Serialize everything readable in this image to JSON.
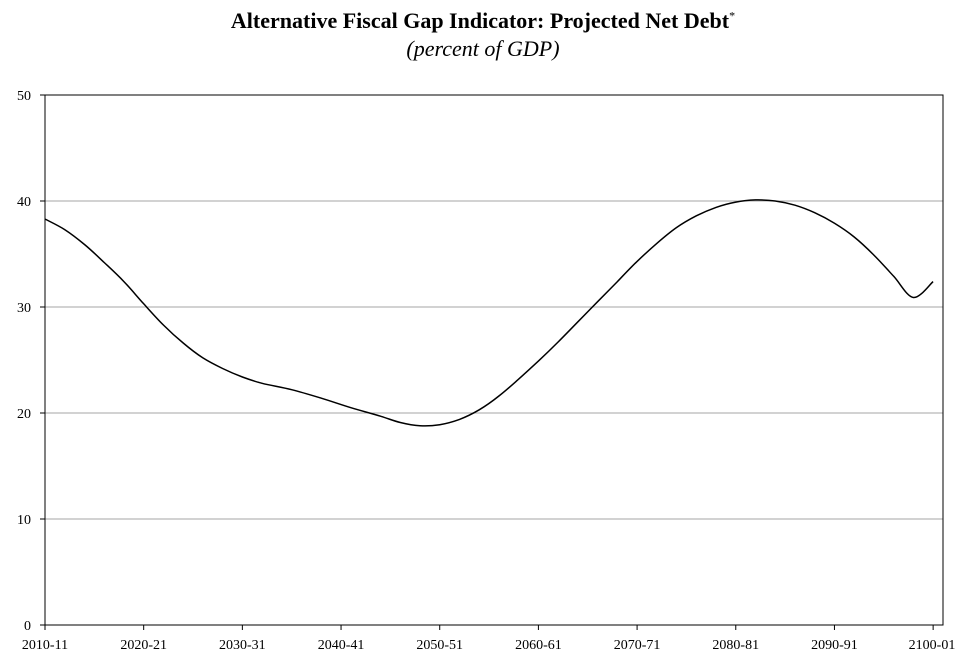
{
  "chart_data": {
    "type": "line",
    "title": "Alternative Fiscal Gap Indicator: Projected Net Debt",
    "title_mark": "*",
    "subtitle": "(percent of GDP)",
    "xlabel": "",
    "ylabel": "",
    "ylim": [
      0,
      50
    ],
    "yticks": [
      0,
      10,
      20,
      30,
      40,
      50
    ],
    "xlim": [
      2010,
      2101
    ],
    "xticks": [
      {
        "x": 2010,
        "label": "2010-11"
      },
      {
        "x": 2020,
        "label": "2020-21"
      },
      {
        "x": 2030,
        "label": "2030-31"
      },
      {
        "x": 2040,
        "label": "2040-41"
      },
      {
        "x": 2050,
        "label": "2050-51"
      },
      {
        "x": 2060,
        "label": "2060-61"
      },
      {
        "x": 2070,
        "label": "2070-71"
      },
      {
        "x": 2080,
        "label": "2080-81"
      },
      {
        "x": 2090,
        "label": "2090-91"
      },
      {
        "x": 2100,
        "label": "2100-01"
      }
    ],
    "grid": true,
    "series": [
      {
        "name": "",
        "color": "#000000",
        "x": [
          2010,
          2012,
          2014,
          2016,
          2018,
          2020,
          2022,
          2024,
          2026,
          2028,
          2030,
          2032,
          2035,
          2038,
          2041,
          2044,
          2046,
          2048,
          2050,
          2052,
          2054,
          2056,
          2058,
          2060,
          2062,
          2064,
          2066,
          2068,
          2070,
          2072,
          2074,
          2076,
          2078,
          2080,
          2082,
          2084,
          2086,
          2088,
          2090,
          2092,
          2094,
          2096,
          2098,
          2100
        ],
        "y": [
          38.3,
          37.3,
          35.9,
          34.2,
          32.4,
          30.3,
          28.3,
          26.6,
          25.2,
          24.2,
          23.4,
          22.8,
          22.2,
          21.4,
          20.5,
          19.7,
          19.1,
          18.8,
          18.9,
          19.4,
          20.3,
          21.6,
          23.2,
          24.9,
          26.7,
          28.6,
          30.5,
          32.4,
          34.3,
          36.0,
          37.5,
          38.6,
          39.4,
          39.9,
          40.1,
          40.0,
          39.6,
          38.9,
          37.9,
          36.6,
          34.9,
          32.9,
          30.9,
          32.4
        ]
      }
    ]
  }
}
